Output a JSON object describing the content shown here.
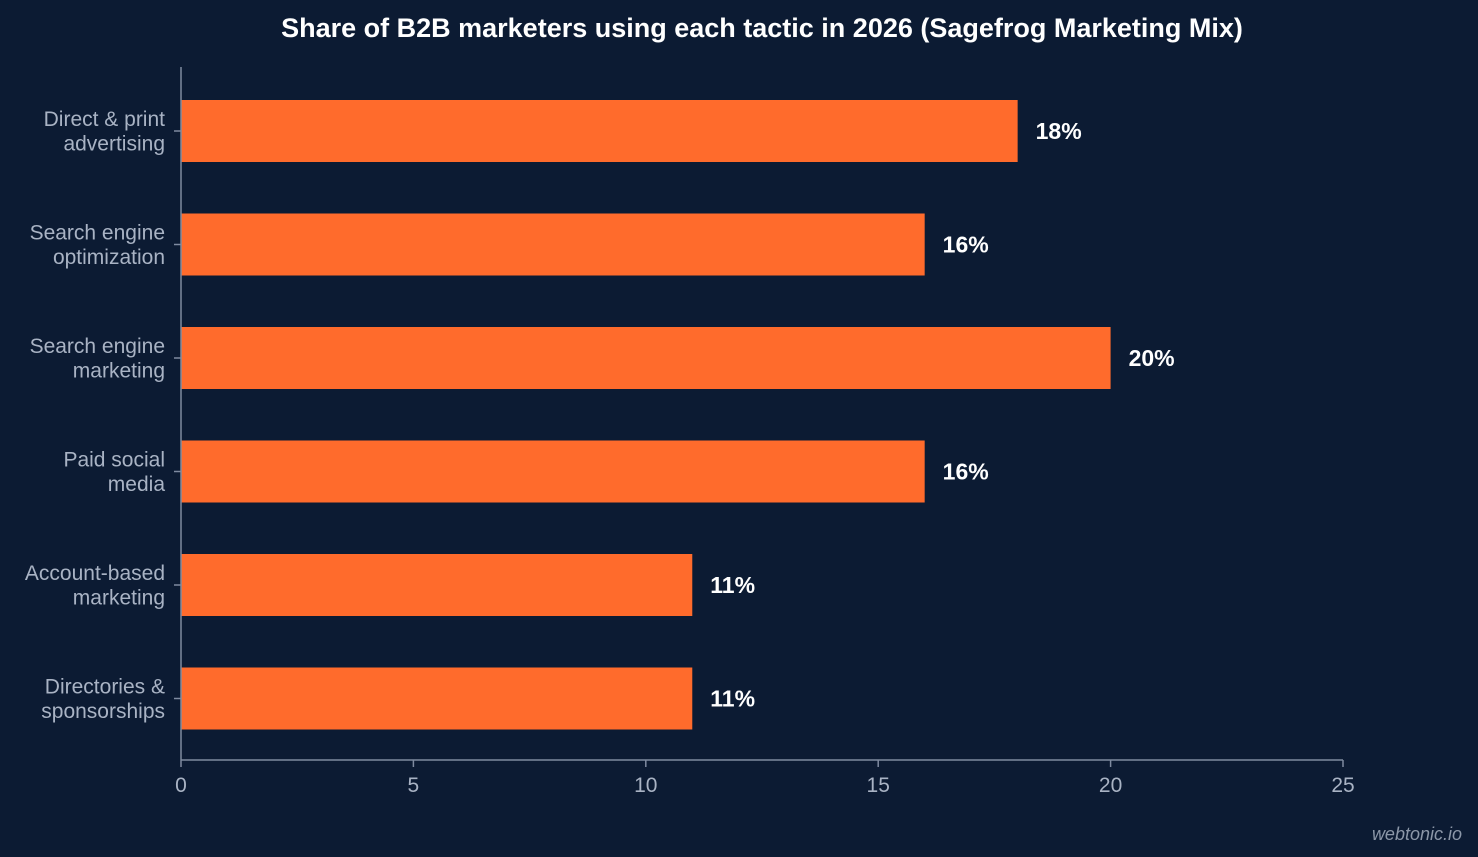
{
  "chart_data": {
    "type": "bar",
    "orientation": "horizontal",
    "title": "Share of B2B marketers using each tactic in 2026 (Sagefrog Marketing Mix)",
    "categories": [
      [
        "Direct & print",
        "advertising"
      ],
      [
        "Search engine",
        "optimization"
      ],
      [
        "Search engine",
        "marketing"
      ],
      [
        "Paid social",
        "media"
      ],
      [
        "Account-based",
        "marketing"
      ],
      [
        "Directories &",
        "sponsorships"
      ]
    ],
    "values": [
      18,
      16,
      20,
      16,
      11,
      11
    ],
    "value_labels": [
      "18%",
      "16%",
      "20%",
      "16%",
      "11%",
      "11%"
    ],
    "xlabel": "",
    "ylabel": "",
    "xlim": [
      0,
      25
    ],
    "xticks": [
      0,
      5,
      10,
      15,
      20,
      25
    ],
    "xtick_labels": [
      "0",
      "5",
      "10",
      "15",
      "20",
      "25"
    ],
    "grid": false,
    "legend": "none",
    "bar_color": "#ff6b2c"
  },
  "watermark": "webtonic.io",
  "colors": {
    "background": "#0c1b33",
    "bar": "#ff6b2c",
    "title": "#ffffff",
    "labels": "#a9b3c4",
    "axis": "#7f8ba0"
  }
}
